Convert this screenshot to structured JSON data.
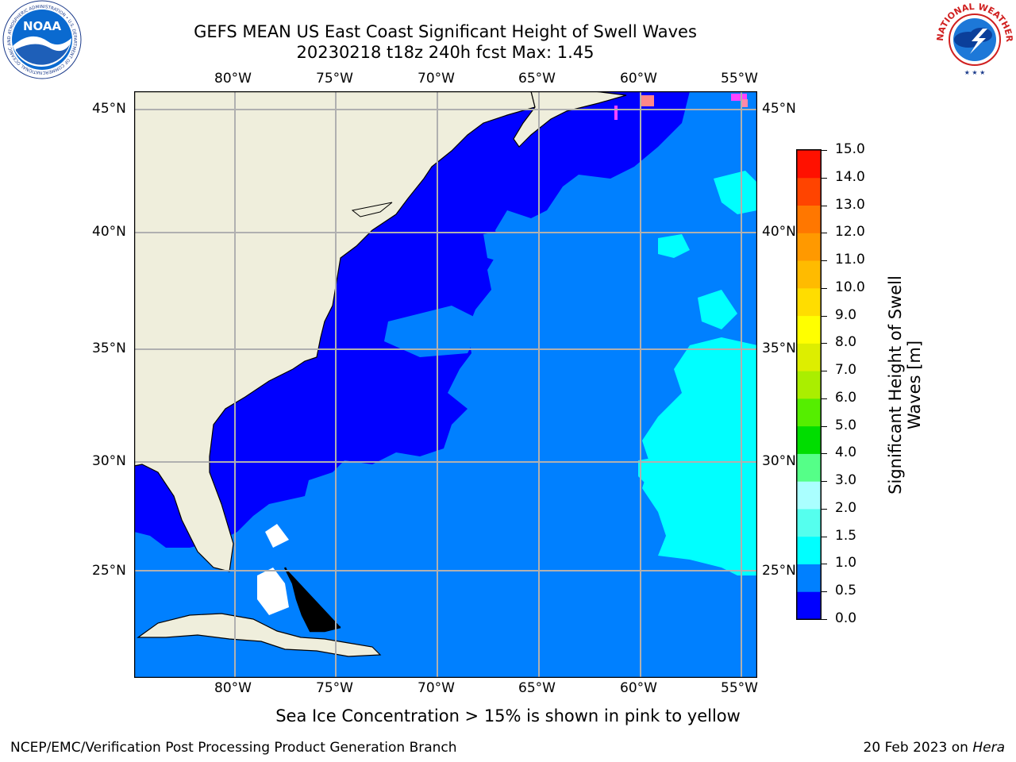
{
  "title": {
    "line1": "GEFS MEAN US East Coast Significant Height of Swell Waves",
    "line2": "20230218 t18z 240h fcst    Max: 1.45"
  },
  "map": {
    "lon_ticks": [
      "80°W",
      "75°W",
      "70°W",
      "65°W",
      "60°W",
      "55°W"
    ],
    "lat_ticks": [
      "45°N",
      "40°N",
      "35°N",
      "30°N",
      "25°N"
    ],
    "colors": {
      "land": "#efeedc",
      "ocean_low": "#0000ff",
      "ocean_mid": "#0080ff",
      "ocean_high": "#00ffff",
      "ocean_higher": "#44ffee",
      "ice": "#ff44ff",
      "grid": "#b0b0b0"
    }
  },
  "colorbar": {
    "label_line1": "Significant Height of Swell",
    "label_line2": "Waves [m]",
    "ticks": [
      "0.0",
      "0.5",
      "1.0",
      "1.5",
      "2.0",
      "3.0",
      "4.0",
      "5.0",
      "6.0",
      "7.0",
      "8.0",
      "9.0",
      "10.0",
      "11.0",
      "12.0",
      "13.0",
      "14.0",
      "15.0"
    ],
    "bins": [
      "#0000ff",
      "#0080ff",
      "#00ffff",
      "#55ffee",
      "#aaffff",
      "#55ff88",
      "#00dd00",
      "#55ee00",
      "#aaee00",
      "#ddee00",
      "#ffff00",
      "#ffdd00",
      "#ffbb00",
      "#ff9900",
      "#ff7700",
      "#ff4400",
      "#ff1100"
    ]
  },
  "logos": {
    "noaa_text": "NOAA",
    "noaa_ring": "NATIONAL OCEANIC AND ATMOSPHERIC ADMINISTRATION • U.S. DEPARTMENT OF COMMERCE",
    "nws_ring": "NATIONAL WEATHER SERVICE"
  },
  "footnote": "Sea Ice Concentration > 15% is shown in pink to yellow",
  "credit": "NCEP/EMC/Verification Post Processing Product Generation Branch",
  "date": "20 Feb 2023 on ",
  "date_machine": "Hera"
}
